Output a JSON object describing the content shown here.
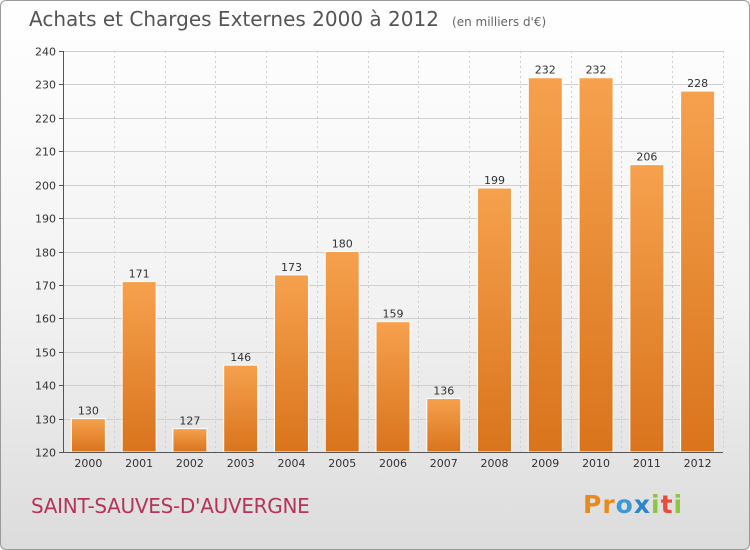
{
  "header": {
    "title": "Achats et Charges Externes 2000 à 2012",
    "unit": "(en milliers d'€)"
  },
  "footer": {
    "commune": "SAINT-SAUVES-D'AUVERGNE",
    "logo_letters": [
      "P",
      "r",
      "o",
      "x",
      "i",
      "t",
      "i"
    ],
    "logo_colors": [
      "#e98a1c",
      "#e98a1c",
      "#3b9ad6",
      "#2b86c8",
      "#8cc63f",
      "#e84c3d",
      "#8cc63f"
    ]
  },
  "colors": {
    "bar_top": "#f6a14e",
    "bar_bottom": "#d9741c",
    "grid": "#cfcfcf",
    "axis": "#555555"
  },
  "chart_data": {
    "type": "bar",
    "title": "Achats et Charges Externes 2000 à 2012",
    "subtitle": "(en milliers d'€)",
    "categories": [
      "2000",
      "2001",
      "2002",
      "2003",
      "2004",
      "2005",
      "2006",
      "2007",
      "2008",
      "2009",
      "2010",
      "2011",
      "2012"
    ],
    "values": [
      130,
      171,
      127,
      146,
      173,
      180,
      159,
      136,
      199,
      232,
      232,
      206,
      228
    ],
    "ylim": [
      120,
      240
    ],
    "yticks": [
      120,
      130,
      140,
      150,
      160,
      170,
      180,
      190,
      200,
      210,
      220,
      230,
      240
    ],
    "grid": true,
    "legend": "none"
  }
}
